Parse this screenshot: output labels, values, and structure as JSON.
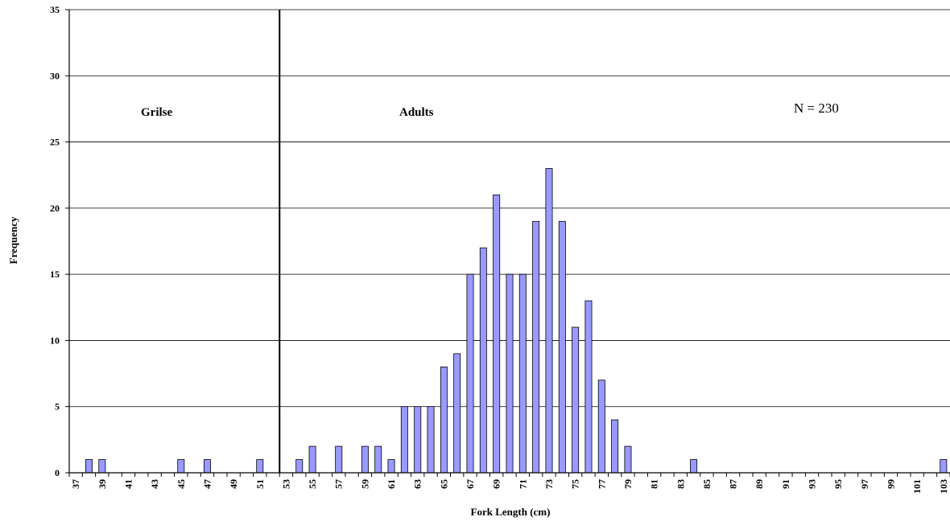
{
  "chart_data": {
    "type": "bar",
    "xlabel": "Fork Length (cm)",
    "ylabel": "Frequency",
    "ylim": [
      0,
      35
    ],
    "yticks": [
      0,
      5,
      10,
      15,
      20,
      25,
      30,
      35
    ],
    "grid": "horizontal",
    "bar_color": "#9999ff",
    "categories": [
      37,
      38,
      39,
      40,
      41,
      42,
      43,
      44,
      45,
      46,
      47,
      48,
      49,
      50,
      51,
      52,
      53,
      54,
      55,
      56,
      57,
      58,
      59,
      60,
      61,
      62,
      63,
      64,
      65,
      66,
      67,
      68,
      69,
      70,
      71,
      72,
      73,
      74,
      75,
      76,
      77,
      78,
      79,
      80,
      81,
      82,
      83,
      84,
      85,
      86,
      87,
      88,
      89,
      90,
      91,
      92,
      93,
      94,
      95,
      96,
      97,
      98,
      99,
      100,
      101,
      102,
      103
    ],
    "tick_labels": [
      "37",
      "39",
      "41",
      "43",
      "45",
      "47",
      "49",
      "51",
      "53",
      "55",
      "57",
      "59",
      "61",
      "63",
      "65",
      "67",
      "69",
      "71",
      "73",
      "75",
      "77",
      "79",
      "81",
      "83",
      "85",
      "87",
      "89",
      "91",
      "93",
      "95",
      "97",
      "99",
      "101",
      "103"
    ],
    "values": [
      0,
      1,
      1,
      0,
      0,
      0,
      0,
      0,
      1,
      0,
      1,
      0,
      0,
      0,
      1,
      0,
      0,
      1,
      2,
      0,
      2,
      0,
      2,
      2,
      1,
      5,
      5,
      5,
      8,
      9,
      15,
      17,
      21,
      15,
      15,
      19,
      23,
      19,
      11,
      13,
      7,
      4,
      2,
      0,
      0,
      0,
      0,
      1,
      0,
      0,
      0,
      0,
      0,
      0,
      0,
      0,
      0,
      0,
      0,
      0,
      0,
      0,
      0,
      0,
      0,
      0,
      1
    ],
    "divider_between": [
      52,
      53
    ],
    "annotations": {
      "grilse": "Grilse",
      "adults": "Adults",
      "n": "N = 230"
    }
  }
}
